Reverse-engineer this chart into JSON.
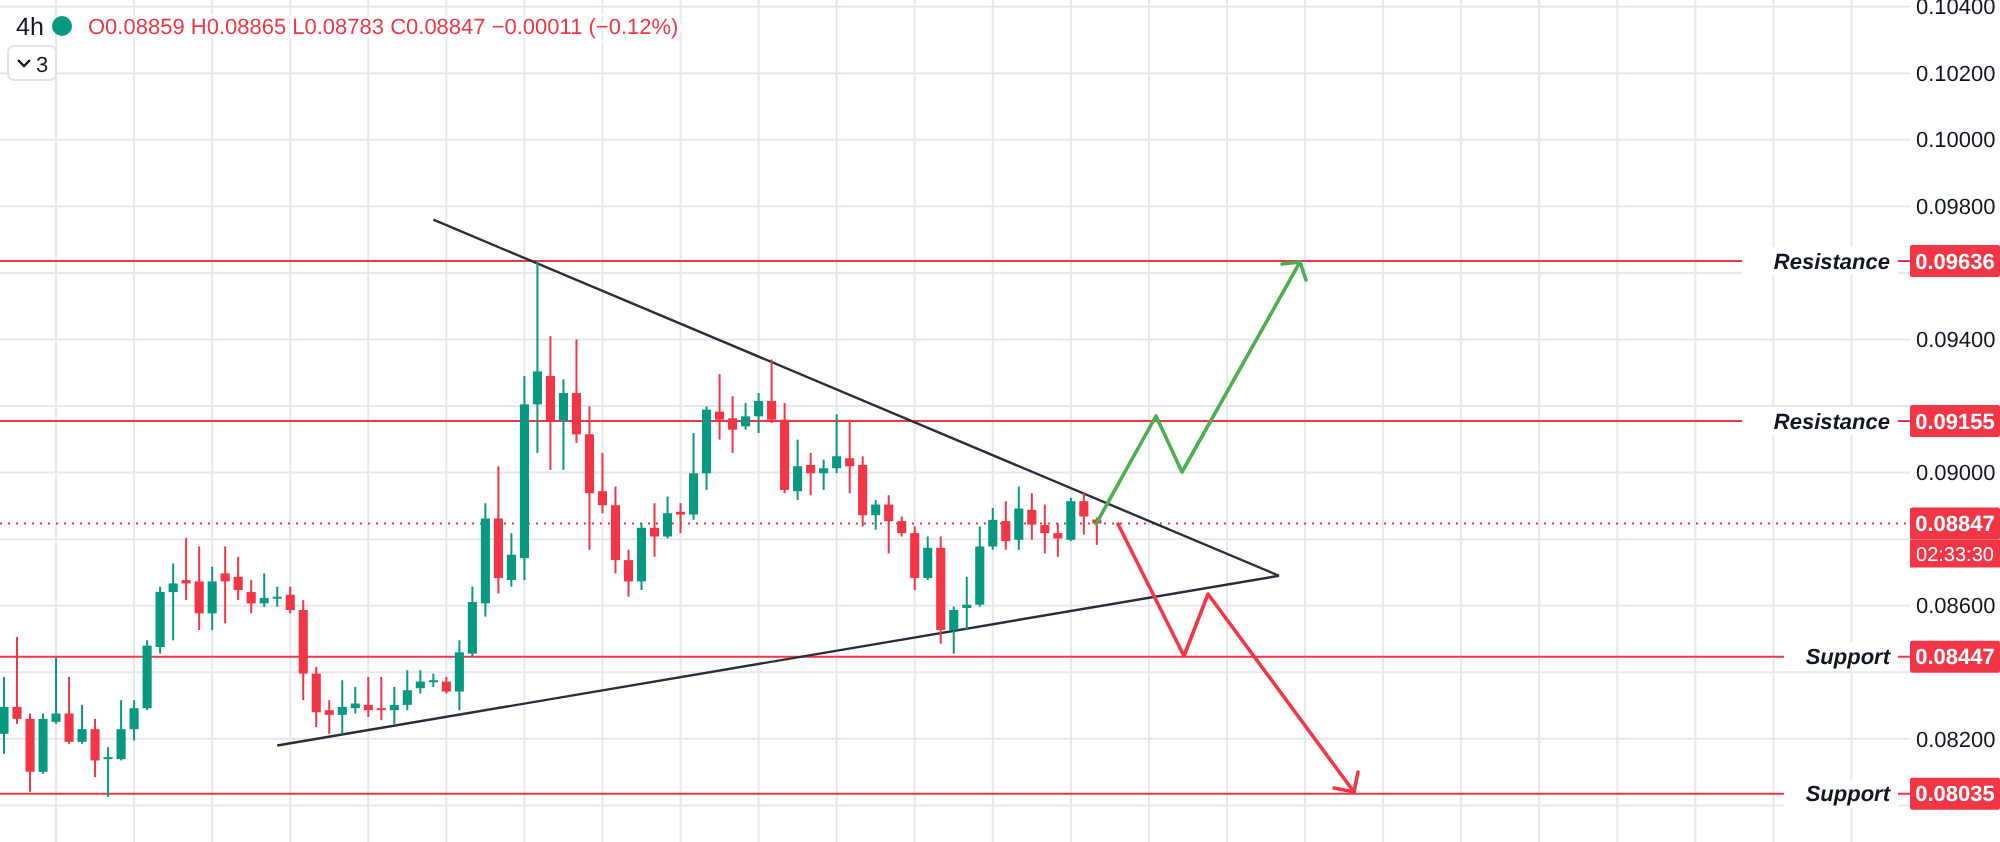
{
  "chart_data": {
    "type": "candlestick",
    "title": "4h",
    "subtitle": "O0.08859 H0.08865 L0.08783 C0.08847 −0.00011 (−0.12%)",
    "categories": [
      null,
      null,
      null,
      null,
      null,
      null,
      null,
      null,
      null,
      null,
      null,
      null,
      null,
      null,
      null,
      null,
      null,
      null,
      null,
      null,
      null,
      null,
      null,
      null,
      null,
      null,
      null,
      null,
      null,
      null,
      null,
      null,
      null,
      null,
      null,
      null,
      null,
      null,
      null,
      null,
      null,
      null,
      null,
      null,
      null,
      null,
      null,
      null,
      null,
      null,
      null,
      null,
      null,
      null,
      null,
      null,
      null,
      null,
      null,
      null,
      null,
      null,
      null,
      null,
      null,
      null,
      null,
      null,
      null,
      null,
      null,
      null,
      null,
      null,
      null,
      null,
      null,
      null,
      null,
      null,
      null,
      null,
      null,
      null,
      null,
      null,
      null,
      null,
      null,
      null,
      null,
      null,
      null,
      null,
      null,
      null,
      null,
      null,
      null,
      null,
      null,
      null,
      null,
      null,
      null,
      null,
      null,
      null,
      null,
      null,
      null,
      null,
      null,
      null,
      null,
      null,
      null,
      null,
      null,
      null,
      null,
      null,
      null,
      null,
      null,
      null,
      null,
      null,
      null,
      null,
      null,
      null,
      null,
      null,
      null,
      null,
      null,
      null,
      null,
      null,
      null,
      null,
      null,
      null,
      null,
      null,
      null
    ],
    "ohlc": [
      [
        0.08215,
        0.08386,
        0.08155,
        0.08296
      ],
      [
        0.08296,
        0.08506,
        0.08245,
        0.0826
      ],
      [
        0.0826,
        0.08276,
        0.08041,
        0.08101
      ],
      [
        0.08101,
        0.08276,
        0.08095,
        0.0826
      ],
      [
        0.08251,
        0.08444,
        0.08245,
        0.08276
      ],
      [
        0.08276,
        0.08386,
        0.08185,
        0.08191
      ],
      [
        0.08191,
        0.08302,
        0.08185,
        0.08229
      ],
      [
        0.08229,
        0.0826,
        0.08085,
        0.08135
      ],
      [
        0.08139,
        0.08175,
        0.08025,
        0.08145
      ],
      [
        0.08139,
        0.08316,
        0.08135,
        0.08229
      ],
      [
        0.08229,
        0.08316,
        0.08195,
        0.08292
      ],
      [
        0.08292,
        0.08496,
        0.08286,
        0.0848
      ],
      [
        0.08476,
        0.08657,
        0.08456,
        0.08641
      ],
      [
        0.08641,
        0.08727,
        0.08496,
        0.08667
      ],
      [
        0.08677,
        0.08804,
        0.08617,
        0.08667
      ],
      [
        0.08673,
        0.08778,
        0.08527,
        0.08577
      ],
      [
        0.08577,
        0.08717,
        0.08527,
        0.08673
      ],
      [
        0.08697,
        0.08778,
        0.08547,
        0.08673
      ],
      [
        0.08687,
        0.08747,
        0.08617,
        0.08647
      ],
      [
        0.08641,
        0.08677,
        0.08577,
        0.08607
      ],
      [
        0.08607,
        0.08697,
        0.08597,
        0.08623
      ],
      [
        0.08621,
        0.08657,
        0.08597,
        0.08627
      ],
      [
        0.08633,
        0.08657,
        0.08577,
        0.08587
      ],
      [
        0.08587,
        0.08617,
        0.08316,
        0.08396
      ],
      [
        0.08396,
        0.08416,
        0.08235,
        0.0828
      ],
      [
        0.08286,
        0.08316,
        0.08215,
        0.08272
      ],
      [
        0.08272,
        0.08376,
        0.08215,
        0.08296
      ],
      [
        0.08292,
        0.08356,
        0.08276,
        0.08306
      ],
      [
        0.08302,
        0.08386,
        0.08266,
        0.08286
      ],
      [
        0.08292,
        0.08386,
        0.08256,
        0.08286
      ],
      [
        0.08286,
        0.08356,
        0.08245,
        0.08302
      ],
      [
        0.08302,
        0.08406,
        0.08286,
        0.08346
      ],
      [
        0.08352,
        0.08406,
        0.08336,
        0.08372
      ],
      [
        0.08372,
        0.08396,
        0.08356,
        0.08376
      ],
      [
        0.08372,
        0.08386,
        0.08336,
        0.08342
      ],
      [
        0.08342,
        0.08496,
        0.08286,
        0.0846
      ],
      [
        0.08456,
        0.08657,
        0.08446,
        0.08611
      ],
      [
        0.08607,
        0.08908,
        0.08567,
        0.08862
      ],
      [
        0.08862,
        0.09019,
        0.08637,
        0.08683
      ],
      [
        0.08677,
        0.08818,
        0.08657,
        0.08753
      ],
      [
        0.08743,
        0.0929,
        0.08677,
        0.09205
      ],
      [
        0.09205,
        0.09635,
        0.09059,
        0.09304
      ],
      [
        0.0929,
        0.0941,
        0.09008,
        0.09155
      ],
      [
        0.09155,
        0.0928,
        0.09008,
        0.09239
      ],
      [
        0.09239,
        0.094,
        0.09089,
        0.09115
      ],
      [
        0.09115,
        0.09199,
        0.08768,
        0.08938
      ],
      [
        0.08944,
        0.09059,
        0.08878,
        0.08902
      ],
      [
        0.08902,
        0.08958,
        0.08697,
        0.08737
      ],
      [
        0.08737,
        0.08768,
        0.08627,
        0.08673
      ],
      [
        0.08673,
        0.08848,
        0.08647,
        0.08834
      ],
      [
        0.08834,
        0.08908,
        0.08747,
        0.08808
      ],
      [
        0.08808,
        0.08928,
        0.08802,
        0.08878
      ],
      [
        0.08882,
        0.08908,
        0.08818,
        0.08874
      ],
      [
        0.08874,
        0.09119,
        0.08858,
        0.08998
      ],
      [
        0.08998,
        0.09199,
        0.08948,
        0.09189
      ],
      [
        0.09183,
        0.09296,
        0.09099,
        0.09159
      ],
      [
        0.09163,
        0.09229,
        0.09059,
        0.09129
      ],
      [
        0.09139,
        0.09209,
        0.09129,
        0.09169
      ],
      [
        0.09169,
        0.09239,
        0.09119,
        0.09215
      ],
      [
        0.09215,
        0.0934,
        0.09149,
        0.09159
      ],
      [
        0.09159,
        0.09209,
        0.08938,
        0.08948
      ],
      [
        0.08944,
        0.09099,
        0.08918,
        0.09019
      ],
      [
        0.09023,
        0.09059,
        0.08932,
        0.08998
      ],
      [
        0.08998,
        0.09039,
        0.08948,
        0.09013
      ],
      [
        0.09013,
        0.09175,
        0.08998,
        0.09049
      ],
      [
        0.09043,
        0.09159,
        0.08938,
        0.09019
      ],
      [
        0.09023,
        0.09049,
        0.08838,
        0.08872
      ],
      [
        0.08872,
        0.08918,
        0.08828,
        0.08904
      ],
      [
        0.08904,
        0.08932,
        0.08757,
        0.08854
      ],
      [
        0.08854,
        0.08868,
        0.08808,
        0.08818
      ],
      [
        0.08818,
        0.08838,
        0.08647,
        0.08683
      ],
      [
        0.08683,
        0.08808,
        0.08677,
        0.08774
      ],
      [
        0.08774,
        0.08808,
        0.08486,
        0.08527
      ],
      [
        0.08527,
        0.08597,
        0.08456,
        0.08587
      ],
      [
        0.08593,
        0.08687,
        0.08527,
        0.08603
      ],
      [
        0.08603,
        0.08838,
        0.08597,
        0.08778
      ],
      [
        0.08778,
        0.08894,
        0.08768,
        0.08858
      ],
      [
        0.08854,
        0.08914,
        0.08768,
        0.08794
      ],
      [
        0.08798,
        0.08958,
        0.08768,
        0.08892
      ],
      [
        0.08888,
        0.08938,
        0.08798,
        0.08844
      ],
      [
        0.08842,
        0.08904,
        0.08757,
        0.08818
      ],
      [
        0.08818,
        0.08848,
        0.08747,
        0.08802
      ],
      [
        0.08798,
        0.08924,
        0.08794,
        0.08914
      ],
      [
        0.08914,
        0.08938,
        0.08814,
        0.08868
      ],
      [
        0.08859,
        0.08865,
        0.08783,
        0.08847
      ],
      null,
      null,
      null,
      null,
      null,
      null,
      null,
      null,
      null,
      null,
      null,
      null,
      null,
      null,
      null,
      null,
      null,
      null,
      null,
      null,
      null,
      null,
      null,
      null,
      null,
      null,
      null,
      null,
      null,
      null,
      null,
      null,
      null,
      null,
      null,
      null,
      null,
      null,
      null,
      null,
      null,
      null,
      null,
      null,
      null,
      null,
      null,
      null,
      null,
      null,
      null,
      null,
      null,
      null,
      null,
      null,
      null,
      null,
      null,
      null,
      null,
      null
    ],
    "ylim": [
      0.0789,
      0.1042
    ],
    "yticks": [
      {
        "value": 0.08,
        "label": null
      },
      {
        "value": 0.082,
        "label": "0.08200"
      },
      {
        "value": 0.084,
        "label": null
      },
      {
        "value": 0.086,
        "label": "0.08600"
      },
      {
        "value": 0.088,
        "label": null
      },
      {
        "value": 0.09,
        "label": "0.09000"
      },
      {
        "value": 0.092,
        "label": null
      },
      {
        "value": 0.094,
        "label": "0.09400"
      },
      {
        "value": 0.096,
        "label": null
      },
      {
        "value": 0.098,
        "label": "0.09800"
      },
      {
        "value": 0.1,
        "label": "0.10000"
      },
      {
        "value": 0.102,
        "label": "0.10200"
      },
      {
        "value": 0.104,
        "label": "0.10400"
      }
    ],
    "ref_lines": [
      {
        "axis": "y",
        "value": 0.09636,
        "label": "Resistance",
        "color": "#f23645",
        "line_style": "solid"
      },
      {
        "axis": "y",
        "value": 0.09155,
        "label": "Resistance",
        "color": "#f23645",
        "line_style": "solid"
      },
      {
        "axis": "y",
        "value": 0.08447,
        "label": "Support",
        "color": "#f23645",
        "line_style": "solid"
      },
      {
        "axis": "y",
        "value": 0.08035,
        "label": "Support",
        "color": "#f23645",
        "line_style": "solid"
      },
      {
        "axis": "y",
        "value": 0.08847,
        "label": null,
        "color": "#f23645",
        "line_style": "dotted"
      }
    ],
    "annotations": [
      "3",
      "02:33:30",
      "0.09636",
      "0.09155",
      "0.08447",
      "0.08035",
      "0.08847"
    ],
    "series": [
      {
        "type": "line",
        "color": "#2a2e39",
        "values": [
          null,
          null,
          null,
          null,
          null,
          null,
          null,
          null,
          null,
          null,
          null,
          null,
          null,
          null,
          null,
          null,
          null,
          null,
          null,
          null,
          null,
          0.0818,
          null,
          null,
          null,
          null,
          null,
          null,
          null,
          null,
          null,
          null,
          null,
          null,
          null,
          null,
          null,
          null,
          null,
          null,
          null,
          null,
          null,
          null,
          null,
          null,
          null,
          null,
          null,
          null,
          null,
          null,
          null,
          null,
          null,
          null,
          null,
          null,
          null,
          null,
          null,
          null,
          null,
          null,
          null,
          null,
          null,
          null,
          null,
          null,
          null,
          null,
          null,
          null,
          null,
          null,
          null,
          null,
          null,
          null,
          null,
          null,
          null,
          null,
          null,
          null,
          null,
          null,
          null,
          null,
          null,
          null,
          null,
          null,
          null,
          null,
          null,
          null,
          0.0869,
          null,
          null,
          null,
          null,
          null,
          null,
          null,
          null,
          null,
          null,
          null,
          null,
          null,
          null,
          null,
          null,
          null,
          null,
          null,
          null,
          null,
          null,
          null,
          null,
          null,
          null,
          null,
          null,
          null,
          null,
          null,
          null,
          null,
          null,
          null,
          null,
          null,
          null,
          null,
          null,
          null,
          null,
          null,
          null,
          null,
          null,
          null,
          null
        ]
      },
      {
        "type": "line",
        "color": "#2a2e39",
        "values": [
          null,
          null,
          null,
          null,
          null,
          null,
          null,
          null,
          null,
          null,
          null,
          null,
          null,
          null,
          null,
          null,
          null,
          null,
          null,
          null,
          null,
          null,
          null,
          null,
          null,
          null,
          null,
          null,
          null,
          null,
          null,
          null,
          null,
          0.0976,
          null,
          null,
          null,
          null,
          null,
          null,
          null,
          null,
          null,
          null,
          null,
          null,
          null,
          null,
          null,
          null,
          null,
          null,
          null,
          null,
          null,
          null,
          null,
          null,
          null,
          null,
          null,
          null,
          null,
          null,
          null,
          null,
          null,
          null,
          null,
          null,
          null,
          null,
          null,
          null,
          null,
          null,
          null,
          null,
          null,
          null,
          null,
          null,
          null,
          null,
          null,
          null,
          null,
          null,
          null,
          null,
          null,
          null,
          null,
          null,
          null,
          null,
          null,
          null,
          0.0869,
          null,
          null,
          null,
          null,
          null,
          null,
          null,
          null,
          null,
          null,
          null,
          null,
          null,
          null,
          null,
          null,
          null,
          null,
          null,
          null,
          null,
          null,
          null,
          null,
          null,
          null,
          null,
          null,
          null,
          null,
          null,
          null,
          null,
          null,
          null,
          null,
          null,
          null,
          null,
          null,
          null,
          null,
          null,
          null,
          null,
          null,
          null,
          null
        ]
      }
    ],
    "grid": true,
    "tick_labels": "y"
  }
}
